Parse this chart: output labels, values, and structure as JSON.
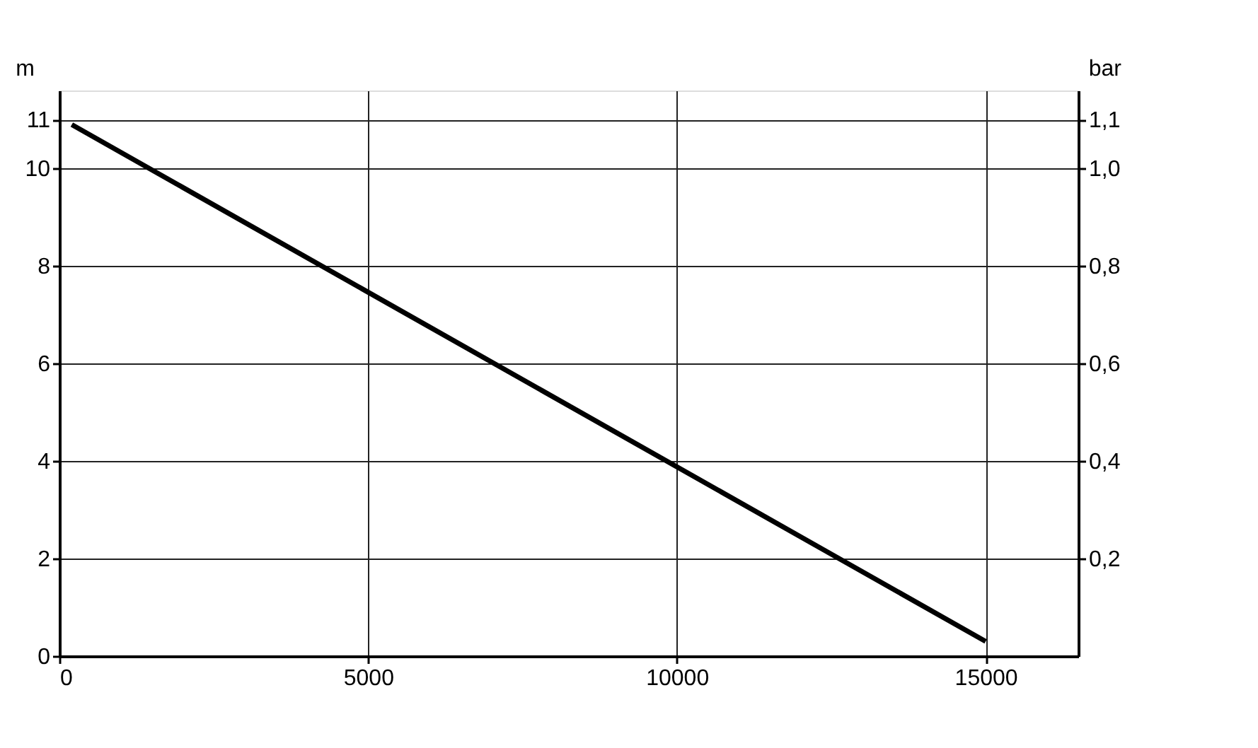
{
  "chart_data": {
    "type": "line",
    "ylabel": "m",
    "y2label": "bar",
    "x": [
      200,
      15000
    ],
    "series": [
      {
        "color": "#000000",
        "values": [
          10.9,
          0.3
        ]
      }
    ],
    "xlim": [
      0,
      16500
    ],
    "xticks": [
      0,
      5000,
      10000,
      15000
    ],
    "ylim": [
      0,
      11.6
    ],
    "yticks": [
      0,
      2,
      4,
      6,
      8,
      10,
      11
    ],
    "y2lim": [
      0,
      1.16
    ],
    "y2ticks": [
      {
        "value": 0.2,
        "label": "0,2"
      },
      {
        "value": 0.4,
        "label": "0,4"
      },
      {
        "value": 0.6,
        "label": "0,6"
      },
      {
        "value": 0.8,
        "label": "0,8"
      },
      {
        "value": 1.0,
        "label": "1,0"
      },
      {
        "value": 1.1,
        "label": "1,1"
      }
    ],
    "grid": true,
    "marker": "none",
    "line_style": "solid"
  }
}
